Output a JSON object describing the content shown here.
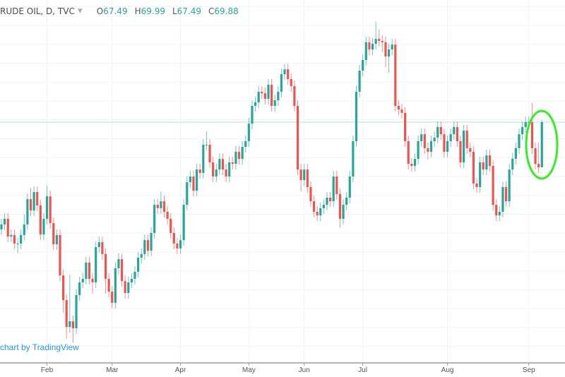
{
  "header": {
    "symbol": "RUDE OIL, D, TVC",
    "open_label": "O",
    "open": "67.49",
    "high_label": "H",
    "high": "69.99",
    "low_label": "L",
    "low": "67.49",
    "close_label": "C",
    "close": "69.88"
  },
  "watermark": "chart by TradingView",
  "colors": {
    "up": "#26a69a",
    "down": "#ef5350",
    "annotation": "#33ee22",
    "price_line": "#b2dfdb",
    "grid": "#f0f3fa"
  },
  "chart_data": {
    "type": "candlestick",
    "interval": "D",
    "x_tick_labels": [
      "Feb",
      "Mar",
      "Apr",
      "May",
      "Jun",
      "Jul",
      "Aug",
      "Sep"
    ],
    "month_start_index": [
      14,
      34,
      55,
      76,
      93,
      111,
      137,
      162
    ],
    "ylim": [
      57.5,
      76.0
    ],
    "grid": true,
    "current_price_line": 69.88,
    "annotation": "ellipse around last candle",
    "ohlc": [
      [
        64.2,
        64.76,
        63.9,
        64.46
      ],
      [
        64.46,
        65.06,
        64.16,
        64.76
      ],
      [
        64.76,
        65.06,
        63.52,
        63.82
      ],
      [
        63.82,
        64.2,
        63.52,
        63.9
      ],
      [
        63.9,
        64.2,
        63.15,
        63.45
      ],
      [
        63.45,
        63.75,
        62.95,
        63.45
      ],
      [
        63.45,
        64.2,
        63.15,
        63.9
      ],
      [
        63.9,
        65.0,
        63.6,
        64.46
      ],
      [
        64.46,
        66.1,
        64.16,
        65.8
      ],
      [
        65.8,
        66.4,
        64.9,
        65.2
      ],
      [
        65.2,
        66.48,
        64.9,
        66.18
      ],
      [
        66.18,
        66.48,
        65.17,
        65.47
      ],
      [
        65.47,
        65.77,
        63.63,
        63.93
      ],
      [
        63.93,
        65.06,
        63.63,
        64.76
      ],
      [
        64.76,
        66.5,
        64.46,
        65.95
      ],
      [
        65.95,
        66.25,
        64.23,
        64.53
      ],
      [
        64.53,
        64.83,
        63.11,
        63.41
      ],
      [
        63.41,
        64.2,
        63.11,
        63.9
      ],
      [
        63.9,
        64.2,
        61.46,
        61.76
      ],
      [
        61.76,
        62.06,
        59.8,
        60.45
      ],
      [
        60.45,
        60.75,
        58.4,
        59.03
      ],
      [
        59.03,
        61.8,
        58.73,
        59.33
      ],
      [
        59.33,
        59.63,
        58.2,
        58.96
      ],
      [
        58.96,
        61.02,
        58.66,
        60.72
      ],
      [
        60.72,
        61.69,
        60.42,
        61.39
      ],
      [
        61.39,
        61.88,
        61.09,
        61.58
      ],
      [
        61.58,
        62.74,
        61.28,
        62.44
      ],
      [
        62.44,
        62.74,
        61.28,
        61.58
      ],
      [
        61.58,
        61.88,
        60.8,
        61.39
      ],
      [
        61.39,
        63.56,
        61.09,
        63.26
      ],
      [
        63.26,
        63.82,
        62.96,
        63.52
      ],
      [
        63.52,
        63.82,
        62.59,
        62.89
      ],
      [
        62.89,
        63.19,
        60.8,
        61.58
      ],
      [
        61.58,
        61.88,
        60.6,
        60.9
      ],
      [
        60.9,
        61.2,
        60.01,
        60.31
      ],
      [
        60.31,
        62.44,
        60.01,
        62.14
      ],
      [
        62.14,
        62.92,
        61.84,
        62.62
      ],
      [
        62.62,
        62.92,
        61.16,
        61.46
      ],
      [
        61.46,
        61.76,
        60.53,
        60.83
      ],
      [
        60.83,
        61.69,
        60.53,
        61.39
      ],
      [
        61.39,
        61.88,
        61.09,
        61.58
      ],
      [
        61.58,
        62.25,
        61.28,
        61.95
      ],
      [
        61.95,
        63.0,
        61.65,
        62.7
      ],
      [
        62.7,
        63.19,
        62.4,
        62.89
      ],
      [
        62.89,
        63.93,
        62.59,
        63.63
      ],
      [
        63.63,
        63.93,
        62.77,
        63.07
      ],
      [
        63.07,
        64.31,
        62.77,
        64.01
      ],
      [
        64.01,
        65.8,
        63.71,
        65.5
      ],
      [
        65.5,
        65.8,
        65.02,
        65.32
      ],
      [
        65.32,
        66.2,
        65.02,
        65.69
      ],
      [
        65.69,
        65.99,
        64.83,
        65.13
      ],
      [
        65.13,
        65.43,
        64.46,
        64.76
      ],
      [
        64.76,
        65.06,
        63.71,
        64.01
      ],
      [
        64.01,
        64.31,
        63.15,
        63.45
      ],
      [
        63.45,
        63.75,
        62.89,
        63.19
      ],
      [
        63.19,
        63.93,
        62.89,
        63.63
      ],
      [
        63.63,
        65.8,
        63.33,
        65.5
      ],
      [
        65.5,
        67.0,
        65.2,
        66.7
      ],
      [
        66.7,
        67.3,
        66.4,
        67.0
      ],
      [
        67.0,
        67.3,
        65.95,
        66.25
      ],
      [
        66.25,
        67.67,
        65.95,
        67.37
      ],
      [
        67.37,
        67.67,
        66.89,
        67.19
      ],
      [
        67.19,
        68.98,
        66.89,
        68.68
      ],
      [
        68.68,
        69.4,
        68.38,
        68.68
      ],
      [
        68.68,
        68.98,
        67.45,
        67.75
      ],
      [
        67.75,
        68.05,
        66.7,
        67.0
      ],
      [
        67.0,
        67.67,
        66.7,
        67.37
      ],
      [
        67.37,
        68.23,
        67.07,
        67.93
      ],
      [
        67.93,
        68.23,
        67.07,
        67.37
      ],
      [
        67.37,
        67.67,
        66.7,
        67.0
      ],
      [
        67.0,
        68.05,
        66.7,
        67.75
      ],
      [
        67.75,
        68.05,
        67.37,
        67.67
      ],
      [
        67.67,
        68.61,
        67.37,
        68.31
      ],
      [
        68.31,
        68.61,
        67.63,
        67.93
      ],
      [
        67.93,
        68.87,
        67.63,
        68.57
      ],
      [
        68.57,
        69.17,
        68.27,
        68.87
      ],
      [
        68.87,
        70.1,
        68.57,
        69.8
      ],
      [
        69.8,
        71.04,
        69.5,
        70.74
      ],
      [
        70.74,
        71.23,
        70.44,
        70.93
      ],
      [
        70.93,
        71.79,
        70.63,
        71.49
      ],
      [
        71.49,
        71.79,
        71.11,
        71.41
      ],
      [
        71.41,
        71.71,
        70.81,
        71.11
      ],
      [
        71.11,
        72.16,
        70.81,
        71.86
      ],
      [
        71.86,
        72.16,
        70.44,
        70.74
      ],
      [
        70.74,
        71.34,
        70.44,
        71.04
      ],
      [
        71.04,
        71.79,
        70.74,
        71.49
      ],
      [
        71.49,
        72.72,
        71.19,
        72.42
      ],
      [
        72.42,
        72.98,
        72.12,
        72.68
      ],
      [
        72.68,
        72.98,
        71.86,
        72.16
      ],
      [
        72.16,
        72.46,
        71.49,
        71.79
      ],
      [
        71.79,
        72.09,
        70.44,
        70.74
      ],
      [
        70.74,
        71.04,
        67.07,
        67.37
      ],
      [
        67.37,
        67.67,
        66.2,
        66.81
      ],
      [
        66.81,
        67.67,
        66.51,
        67.37
      ],
      [
        67.37,
        67.67,
        66.14,
        66.44
      ],
      [
        66.44,
        66.74,
        65.39,
        65.69
      ],
      [
        65.69,
        65.99,
        64.83,
        65.13
      ],
      [
        65.13,
        65.43,
        64.64,
        64.94
      ],
      [
        64.94,
        65.62,
        64.64,
        65.32
      ],
      [
        65.32,
        65.8,
        65.02,
        65.5
      ],
      [
        65.5,
        66.18,
        65.2,
        65.88
      ],
      [
        65.88,
        66.18,
        65.39,
        65.69
      ],
      [
        65.69,
        67.3,
        65.39,
        67.0
      ],
      [
        67.0,
        67.3,
        65.77,
        66.07
      ],
      [
        66.07,
        66.37,
        64.3,
        64.76
      ],
      [
        64.76,
        65.8,
        64.46,
        65.5
      ],
      [
        65.5,
        66.18,
        65.2,
        65.88
      ],
      [
        65.88,
        67.3,
        65.58,
        67.0
      ],
      [
        67.0,
        69.17,
        66.7,
        68.87
      ],
      [
        68.87,
        71.79,
        68.57,
        71.49
      ],
      [
        71.49,
        72.91,
        71.19,
        72.61
      ],
      [
        72.61,
        73.47,
        72.31,
        73.17
      ],
      [
        73.17,
        74.41,
        72.87,
        74.11
      ],
      [
        74.11,
        74.41,
        73.43,
        73.73
      ],
      [
        73.73,
        74.33,
        73.43,
        74.03
      ],
      [
        74.03,
        75.2,
        73.73,
        74.29
      ],
      [
        74.29,
        74.8,
        73.88,
        74.18
      ],
      [
        74.18,
        74.48,
        73.6,
        74.11
      ],
      [
        74.11,
        74.41,
        72.8,
        73.36
      ],
      [
        73.36,
        74.03,
        72.5,
        73.73
      ],
      [
        73.73,
        74.29,
        73.43,
        73.99
      ],
      [
        73.99,
        74.29,
        70.44,
        70.74
      ],
      [
        70.74,
        71.04,
        70.25,
        70.55
      ],
      [
        70.55,
        70.85,
        70.07,
        70.37
      ],
      [
        70.37,
        70.67,
        68.57,
        68.87
      ],
      [
        68.87,
        69.17,
        67.37,
        67.67
      ],
      [
        67.67,
        67.97,
        67.26,
        67.56
      ],
      [
        67.56,
        68.23,
        67.26,
        67.93
      ],
      [
        67.93,
        69.17,
        67.63,
        68.87
      ],
      [
        68.87,
        69.54,
        68.57,
        69.24
      ],
      [
        69.24,
        69.54,
        68.2,
        68.5
      ],
      [
        68.5,
        68.8,
        67.9,
        68.31
      ],
      [
        68.31,
        69.17,
        68.01,
        68.87
      ],
      [
        68.87,
        69.36,
        68.57,
        69.06
      ],
      [
        69.06,
        69.92,
        68.76,
        69.62
      ],
      [
        69.62,
        69.92,
        68.94,
        69.24
      ],
      [
        69.24,
        69.54,
        68.01,
        68.31
      ],
      [
        68.31,
        69.17,
        68.01,
        68.87
      ],
      [
        68.87,
        69.54,
        68.57,
        69.24
      ],
      [
        69.24,
        69.92,
        68.94,
        69.62
      ],
      [
        69.62,
        69.92,
        68.57,
        68.87
      ],
      [
        68.87,
        69.17,
        67.45,
        67.75
      ],
      [
        67.75,
        69.73,
        67.45,
        69.43
      ],
      [
        69.43,
        69.73,
        68.2,
        68.5
      ],
      [
        68.5,
        68.8,
        68.01,
        68.31
      ],
      [
        68.31,
        68.61,
        66.33,
        66.63
      ],
      [
        66.63,
        66.93,
        66.14,
        66.44
      ],
      [
        66.44,
        68.05,
        66.14,
        67.75
      ],
      [
        67.75,
        68.05,
        67.07,
        67.37
      ],
      [
        67.37,
        68.42,
        67.07,
        68.12
      ],
      [
        68.12,
        68.42,
        67.26,
        67.56
      ],
      [
        67.56,
        67.86,
        65.2,
        65.5
      ],
      [
        65.5,
        65.8,
        64.64,
        64.94
      ],
      [
        64.94,
        65.43,
        64.64,
        65.13
      ],
      [
        65.13,
        66.74,
        64.83,
        66.44
      ],
      [
        66.44,
        66.74,
        65.39,
        65.69
      ],
      [
        65.69,
        67.67,
        65.39,
        67.37
      ],
      [
        67.37,
        68.24,
        67.07,
        67.94
      ],
      [
        67.94,
        68.8,
        67.64,
        68.5
      ],
      [
        68.5,
        69.54,
        68.2,
        69.24
      ],
      [
        69.24,
        69.92,
        68.94,
        69.62
      ],
      [
        69.62,
        70.18,
        69.32,
        69.88
      ],
      [
        69.88,
        70.18,
        69.58,
        69.88
      ],
      [
        69.88,
        70.9,
        68.2,
        68.5
      ],
      [
        68.5,
        68.8,
        67.37,
        67.67
      ],
      [
        67.67,
        68.8,
        67.19,
        67.49
      ],
      [
        67.49,
        69.99,
        67.49,
        69.88
      ]
    ]
  }
}
